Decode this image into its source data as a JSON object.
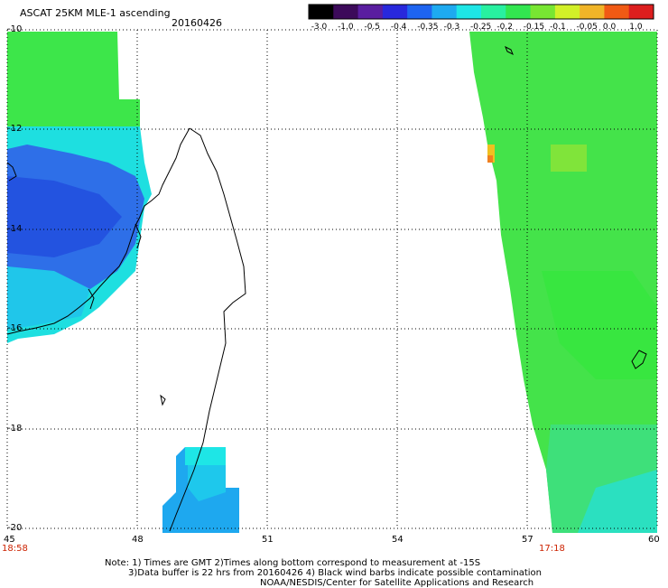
{
  "header": {
    "title": "ASCAT 25KM MLE-1 ascending",
    "date": "20160426"
  },
  "colorbar": {
    "labels": [
      "-3.0",
      "-1.0",
      "-0.5",
      "-0.4",
      "-0.35",
      "-0.3",
      "-0.25",
      "-0.2",
      "-0.15",
      "-0.1",
      "-0.05",
      "0.0",
      "1.0"
    ],
    "colors": [
      "#000000",
      "#3c0a5a",
      "#5a1ea0",
      "#2828dc",
      "#1e64f0",
      "#1eaaf0",
      "#1ee6e6",
      "#28f0a0",
      "#32e650",
      "#78e632",
      "#d2f028",
      "#f0b428",
      "#f05a14",
      "#dc1e1e"
    ]
  },
  "map": {
    "lat_labels": [
      "-10",
      "-12",
      "-14",
      "-16",
      "-18",
      "-20"
    ],
    "lon_labels": [
      "45",
      "48",
      "51",
      "54",
      "57",
      "60"
    ],
    "left_time": "18:58",
    "right_time": "17:18"
  },
  "footer": {
    "line1": "Note: 1) Times are GMT 2)Times along bottom correspond to measurement at -15S",
    "line2": "3)Data buffer is 22 hrs from 20160426 4) Black wind barbs indicate possible contamination",
    "line3": "NOAA/NESDIS/Center for Satellite Applications and Research"
  }
}
